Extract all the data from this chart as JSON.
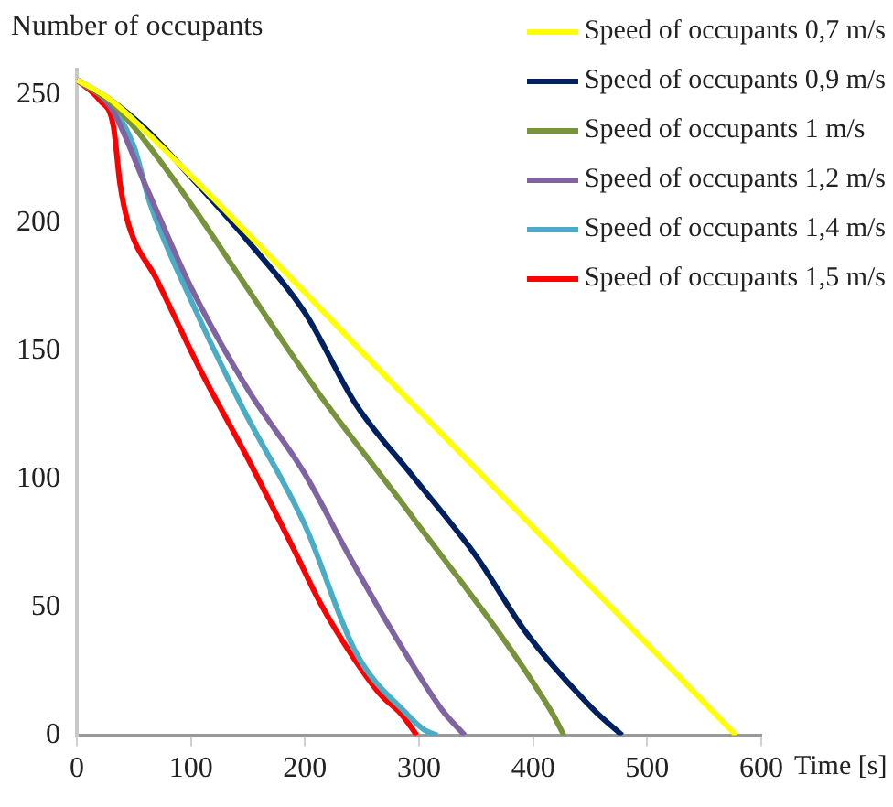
{
  "chart_data": {
    "type": "line",
    "xlabel": "Time [s]",
    "ylabel": "Number of occupants",
    "xlim": [
      0,
      600
    ],
    "xticks": [
      0,
      100,
      200,
      300,
      400,
      500,
      600
    ],
    "ylim": [
      0,
      260
    ],
    "yticks": [
      0,
      50,
      100,
      150,
      200,
      250
    ],
    "grid": false,
    "legend": "top right",
    "marker": "none",
    "line_style": "solid",
    "series": [
      {
        "name": "Speed of occupants 0,7 m/s",
        "color": "#ffff00",
        "x": [
          0,
          30,
          60,
          293,
          578
        ],
        "values": [
          256,
          248,
          236,
          130,
          0
        ]
      },
      {
        "name": "Speed of occupants 0,9 m/s",
        "color": "#002060",
        "x": [
          0,
          30,
          60,
          100,
          150,
          200,
          245,
          293,
          350,
          394,
          453,
          478
        ],
        "values": [
          256,
          248,
          237,
          218,
          193,
          165,
          129,
          102,
          70,
          40,
          10,
          0
        ]
      },
      {
        "name": "Speed of occupants 1 m/s",
        "color": "#77933c",
        "x": [
          0,
          30,
          60,
          213,
          293,
          415,
          427
        ],
        "values": [
          256,
          247,
          232,
          133,
          86,
          10,
          0
        ]
      },
      {
        "name": "Speed of occupants 1,2 m/s",
        "color": "#8064a2",
        "x": [
          0,
          30,
          60,
          100,
          150,
          200,
          240,
          280,
          320,
          340
        ],
        "values": [
          256,
          245,
          215,
          175,
          135,
          102,
          69,
          38,
          10,
          0
        ]
      },
      {
        "name": "Speed of occupants 1,4 m/s",
        "color": "#4bacc6",
        "x": [
          0,
          30,
          50,
          64,
          100,
          144,
          200,
          245,
          290,
          305,
          316
        ],
        "values": [
          256,
          246,
          230,
          208,
          170,
          129,
          82,
          32,
          8,
          2,
          0
        ]
      },
      {
        "name": "Speed of occupants 1,5 m/s",
        "color": "#ff0000",
        "x": [
          0,
          20,
          32,
          38,
          45,
          70,
          109,
          150,
          192,
          213,
          240,
          266,
          285,
          298
        ],
        "values": [
          256,
          248,
          238,
          215,
          200,
          178,
          142,
          108,
          71,
          52,
          32,
          16,
          8,
          0
        ]
      }
    ]
  }
}
